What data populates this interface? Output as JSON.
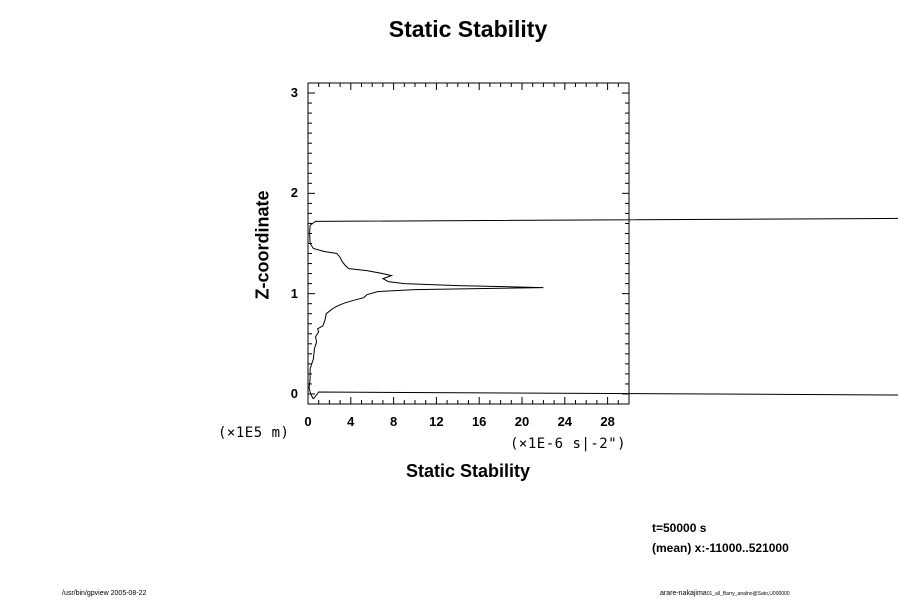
{
  "chart_data": {
    "type": "line",
    "title": "Static Stability",
    "xlabel": "Static Stability",
    "ylabel": "Z-coordinate",
    "x_unit_label": "(×1E-6 s|-2\")",
    "y_unit_label": "(×1E5 m)",
    "xlim": [
      0,
      30
    ],
    "ylim": [
      -0.1,
      3.1
    ],
    "x_ticks": [
      "0",
      "4",
      "8",
      "12",
      "16",
      "20",
      "24",
      "28"
    ],
    "y_ticks": [
      "0",
      "1",
      "2",
      "3"
    ],
    "grid": false,
    "series": [
      {
        "points": [
          [
            0.5,
            -0.05
          ],
          [
            0.3,
            -0.01
          ],
          [
            0.2,
            0.02
          ],
          [
            0.1,
            0.06
          ],
          [
            0.2,
            0.15
          ],
          [
            0.2,
            0.25
          ],
          [
            0.5,
            0.35
          ],
          [
            0.6,
            0.45
          ],
          [
            0.8,
            0.52
          ],
          [
            0.7,
            0.57
          ],
          [
            1.0,
            0.62
          ],
          [
            0.9,
            0.65
          ],
          [
            1.4,
            0.68
          ],
          [
            1.6,
            0.74
          ],
          [
            1.7,
            0.8
          ],
          [
            2.3,
            0.85
          ],
          [
            2.8,
            0.88
          ],
          [
            3.5,
            0.91
          ],
          [
            4.5,
            0.94
          ],
          [
            5.2,
            0.96
          ],
          [
            5.5,
            0.99
          ],
          [
            6.5,
            1.02
          ],
          [
            10,
            1.04
          ],
          [
            22,
            1.06
          ],
          [
            14,
            1.08
          ],
          [
            9,
            1.1
          ],
          [
            7.5,
            1.12
          ],
          [
            7.0,
            1.15
          ],
          [
            7.8,
            1.18
          ],
          [
            7.0,
            1.2
          ],
          [
            5.5,
            1.23
          ],
          [
            3.8,
            1.25
          ],
          [
            3.5,
            1.28
          ],
          [
            3.2,
            1.32
          ],
          [
            3.0,
            1.36
          ],
          [
            2.7,
            1.4
          ],
          [
            1.5,
            1.42
          ],
          [
            0.5,
            1.45
          ],
          [
            0.2,
            1.5
          ],
          [
            0.15,
            1.6
          ],
          [
            0.2,
            1.68
          ],
          [
            0.7,
            1.72
          ],
          [
            60,
            1.75
          ]
        ]
      },
      {
        "points": [
          [
            0.5,
            -0.05
          ],
          [
            1.0,
            0.02
          ],
          [
            60,
            -0.01
          ]
        ]
      }
    ]
  },
  "info": {
    "time": "t=50000 s",
    "mean": "(mean) x:-11000..521000"
  },
  "footer": {
    "left": "/usr/bin/gpview 2005-08-22",
    "right_main": "arare-nakajima",
    "right_sub": "01_all_Barry_analno@Sato,U000000"
  }
}
